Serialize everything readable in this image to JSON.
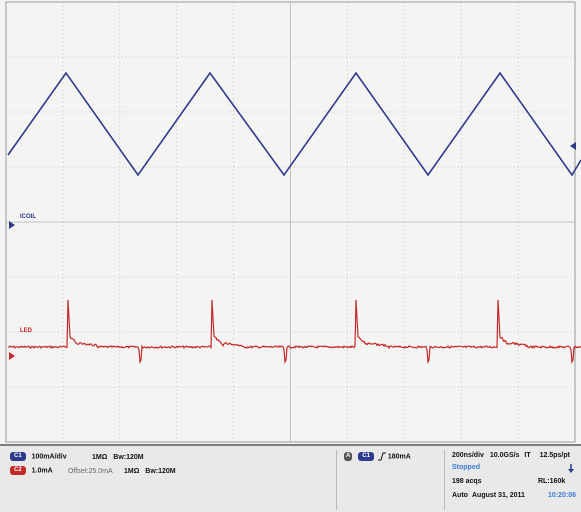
{
  "channels": {
    "ch1": {
      "label": "ICOIL",
      "badge": "C1",
      "scale": "100mA/div",
      "impedance": "1MΩ",
      "bandwidth": "Bw:120M",
      "color": "#2e3a8c"
    },
    "ch2": {
      "label": "LED",
      "badge": "C2",
      "scale": "1.0mA",
      "offset": "Offset:25.0mA",
      "impedance": "1MΩ",
      "bandwidth": "Bw:120M",
      "color": "#c42828"
    }
  },
  "trigger": {
    "mode_badge": "A",
    "source_badge": "C1",
    "slope_icon": "rising-edge-icon",
    "level": "180mA"
  },
  "timebase": {
    "scale": "200ns/div",
    "sample_rate": "10.0GS/s",
    "it_label": "IT",
    "resolution": "12.5ps/pt",
    "state": "Stopped",
    "acquisitions": "198 acqs",
    "record_length": "RL:160k",
    "mode": "Auto",
    "date": "August 31, 2011",
    "time": "10:20:06"
  },
  "colors": {
    "grid": "#b5b5b5",
    "screen_background": "#f4f4f2",
    "status_background": "#e9e9ea",
    "accent": "#3a7bd5"
  }
}
